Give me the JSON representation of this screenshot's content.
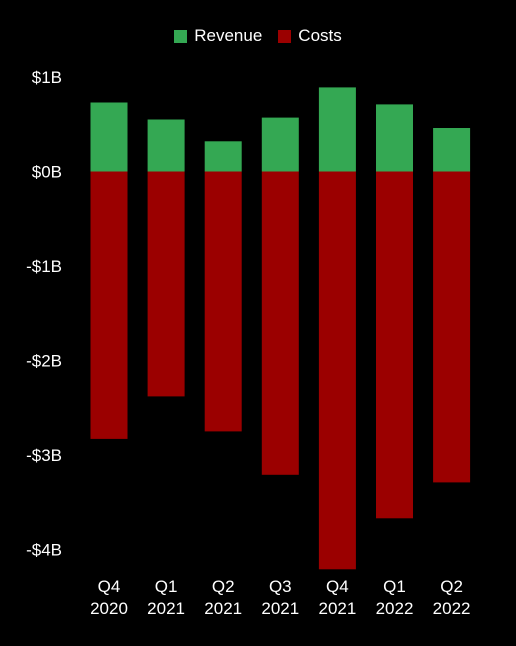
{
  "chart_data": {
    "type": "bar",
    "stacked": true,
    "title": "",
    "xlabel": "",
    "ylabel": "",
    "legend_position": "top-center",
    "grid": false,
    "ylim": [
      -4.2,
      1.1
    ],
    "y_ticks": [
      {
        "value": 1,
        "label": "$1B"
      },
      {
        "value": 0,
        "label": "$0B"
      },
      {
        "value": -1,
        "label": "-$1B"
      },
      {
        "value": -2,
        "label": "-$2B"
      },
      {
        "value": -3,
        "label": "-$3B"
      },
      {
        "value": -4,
        "label": "-$4B"
      }
    ],
    "categories": [
      [
        "Q4",
        "2020"
      ],
      [
        "Q1",
        "2021"
      ],
      [
        "Q2",
        "2021"
      ],
      [
        "Q3",
        "2021"
      ],
      [
        "Q4",
        "2021"
      ],
      [
        "Q1",
        "2022"
      ],
      [
        "Q2",
        "2022"
      ]
    ],
    "series": [
      {
        "name": "Revenue",
        "color": "#34a853",
        "values": [
          0.73,
          0.55,
          0.32,
          0.57,
          0.89,
          0.71,
          0.46
        ]
      },
      {
        "name": "Costs",
        "color": "#9b0000",
        "values": [
          -2.83,
          -2.38,
          -2.75,
          -3.21,
          -4.21,
          -3.67,
          -3.29
        ]
      }
    ]
  }
}
